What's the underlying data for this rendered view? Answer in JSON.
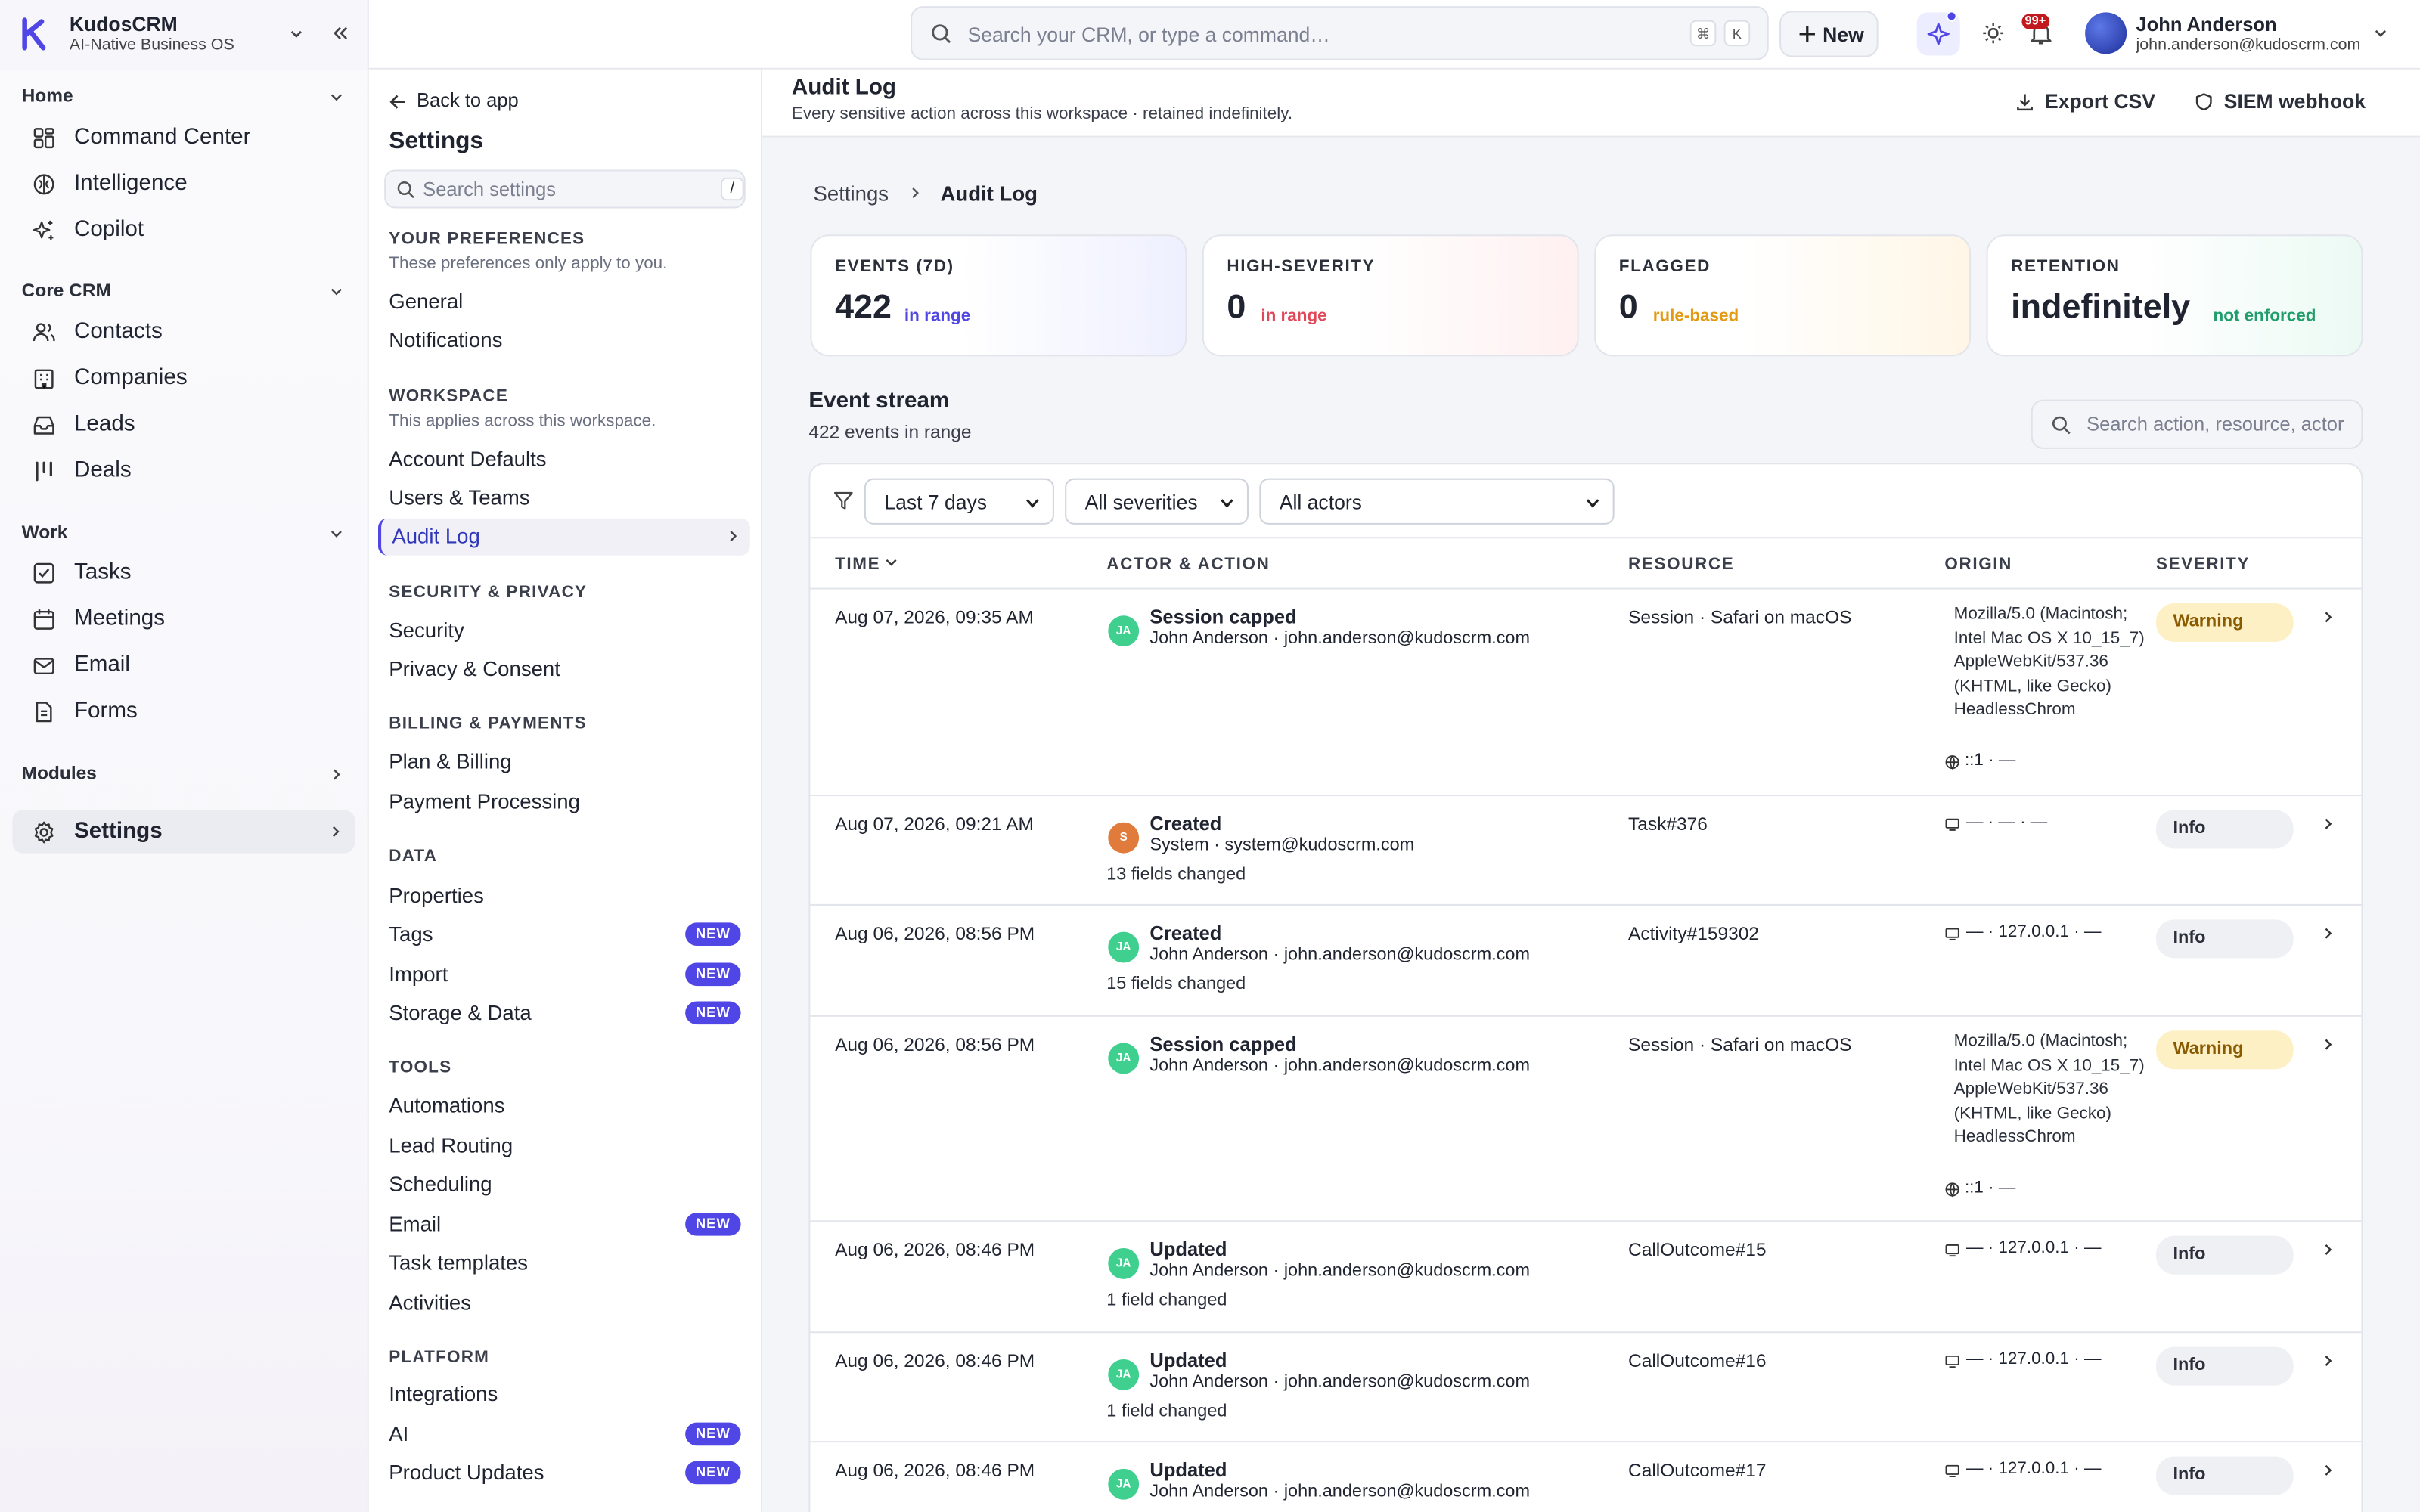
{
  "app": {
    "name": "KudosCRM",
    "tagline": "AI-Native Business OS"
  },
  "topbar": {
    "search_placeholder": "Search your CRM, or type a command…",
    "kbd": [
      "⌘",
      "K"
    ],
    "new_label": "New",
    "notif_count": "99+",
    "user": {
      "name": "John Anderson",
      "email": "john.anderson@kudoscrm.com"
    }
  },
  "sidebar": {
    "sections": [
      {
        "title": "Home",
        "items": [
          "Command Center",
          "Intelligence",
          "Copilot"
        ]
      },
      {
        "title": "Core CRM",
        "items": [
          "Contacts",
          "Companies",
          "Leads",
          "Deals"
        ]
      },
      {
        "title": "Work",
        "items": [
          "Tasks",
          "Meetings",
          "Email",
          "Forms"
        ]
      },
      {
        "title": "Modules",
        "items": []
      }
    ],
    "settings_label": "Settings"
  },
  "settings_nav": {
    "back_label": "Back to app",
    "title": "Settings",
    "search_placeholder": "Search settings",
    "search_kbd": "/",
    "groups": [
      {
        "title": "YOUR PREFERENCES",
        "desc": "These preferences only apply to you.",
        "items": [
          {
            "label": "General"
          },
          {
            "label": "Notifications"
          }
        ]
      },
      {
        "title": "WORKSPACE",
        "desc": "This applies across this workspace.",
        "items": [
          {
            "label": "Account Defaults"
          },
          {
            "label": "Users & Teams"
          },
          {
            "label": "Audit Log",
            "active": true
          }
        ]
      },
      {
        "title": "SECURITY & PRIVACY",
        "items": [
          {
            "label": "Security"
          },
          {
            "label": "Privacy & Consent"
          }
        ]
      },
      {
        "title": "BILLING & PAYMENTS",
        "items": [
          {
            "label": "Plan & Billing"
          },
          {
            "label": "Payment Processing"
          }
        ]
      },
      {
        "title": "DATA",
        "items": [
          {
            "label": "Properties"
          },
          {
            "label": "Tags",
            "badge": "NEW"
          },
          {
            "label": "Import",
            "badge": "NEW"
          },
          {
            "label": "Storage & Data",
            "badge": "NEW"
          }
        ]
      },
      {
        "title": "TOOLS",
        "items": [
          {
            "label": "Automations"
          },
          {
            "label": "Lead Routing"
          },
          {
            "label": "Scheduling"
          },
          {
            "label": "Email",
            "badge": "NEW"
          },
          {
            "label": "Task templates"
          },
          {
            "label": "Activities"
          }
        ]
      },
      {
        "title": "PLATFORM",
        "items": [
          {
            "label": "Integrations"
          },
          {
            "label": "AI",
            "badge": "NEW"
          },
          {
            "label": "Product Updates",
            "badge": "NEW"
          }
        ]
      }
    ]
  },
  "page": {
    "title": "Audit Log",
    "subtitle": "Every sensitive action across this workspace · retained indefinitely.",
    "export_label": "Export CSV",
    "siem_label": "SIEM webhook",
    "breadcrumb": [
      "Settings",
      "Audit Log"
    ]
  },
  "kpis": [
    {
      "label": "EVENTS (7D)",
      "value": "422",
      "sub": "in range",
      "color": "#4f46e5",
      "tint": "#eef0ff"
    },
    {
      "label": "HIGH-SEVERITY",
      "value": "0",
      "sub": "in range",
      "color": "#e0485a",
      "tint": "#fff0f1"
    },
    {
      "label": "FLAGGED",
      "value": "0",
      "sub": "rule-based",
      "color": "#e39a13",
      "tint": "#fff6e6"
    },
    {
      "label": "RETENTION",
      "value": "indefinitely",
      "sub": "not enforced",
      "color": "#1f9d6b",
      "tint": "#ecfaf4"
    }
  ],
  "stream": {
    "title": "Event stream",
    "count_text": "422 events in range",
    "search_placeholder": "Search action, resource, actor",
    "filters": [
      "Last 7 days",
      "All severities",
      "All actors"
    ],
    "columns": [
      "TIME",
      "ACTOR & ACTION",
      "RESOURCE",
      "ORIGIN",
      "SEVERITY"
    ],
    "rows": [
      {
        "time": "Aug 07, 2026, 09:35 AM",
        "initials": "JA",
        "action": "Session capped",
        "who": "John Anderson · john.anderson@kudoscrm.com",
        "changes": "",
        "resource": "Session · Safari on macOS",
        "origin_ua": "Mozilla/5.0 (Macintosh; Intel Mac OS X 10_15_7) AppleWebKit/537.36 (KHTML, like Gecko) HeadlessChrom",
        "origin_ip": "::1 · —",
        "severity": "Warning"
      },
      {
        "time": "Aug 07, 2026, 09:21 AM",
        "initials": "S",
        "action": "Created",
        "who": "System · system@kudoscrm.com",
        "changes": "13 fields changed",
        "resource": "Task#376",
        "origin": "— · — · —",
        "severity": "Info"
      },
      {
        "time": "Aug 06, 2026, 08:56 PM",
        "initials": "JA",
        "action": "Created",
        "who": "John Anderson · john.anderson@kudoscrm.com",
        "changes": "15 fields changed",
        "resource": "Activity#159302",
        "origin": "— · 127.0.0.1 · —",
        "severity": "Info"
      },
      {
        "time": "Aug 06, 2026, 08:56 PM",
        "initials": "JA",
        "action": "Session capped",
        "who": "John Anderson · john.anderson@kudoscrm.com",
        "changes": "",
        "resource": "Session · Safari on macOS",
        "origin_ua": "Mozilla/5.0 (Macintosh; Intel Mac OS X 10_15_7) AppleWebKit/537.36 (KHTML, like Gecko) HeadlessChrom",
        "origin_ip": "::1 · —",
        "severity": "Warning"
      },
      {
        "time": "Aug 06, 2026, 08:46 PM",
        "initials": "JA",
        "action": "Updated",
        "who": "John Anderson · john.anderson@kudoscrm.com",
        "changes": "1 field changed",
        "resource": "CallOutcome#15",
        "origin": "— · 127.0.0.1 · —",
        "severity": "Info"
      },
      {
        "time": "Aug 06, 2026, 08:46 PM",
        "initials": "JA",
        "action": "Updated",
        "who": "John Anderson · john.anderson@kudoscrm.com",
        "changes": "1 field changed",
        "resource": "CallOutcome#16",
        "origin": "— · 127.0.0.1 · —",
        "severity": "Info"
      },
      {
        "time": "Aug 06, 2026, 08:46 PM",
        "initials": "JA",
        "action": "Updated",
        "who": "John Anderson · john.anderson@kudoscrm.com",
        "changes": "",
        "resource": "CallOutcome#17",
        "origin": "— · 127.0.0.1 · —",
        "severity": "Info"
      }
    ]
  },
  "colors": {
    "accent": "#4f46e5",
    "system_avatar": "#e07b3b",
    "user_avatar": "#3fcf8e"
  }
}
